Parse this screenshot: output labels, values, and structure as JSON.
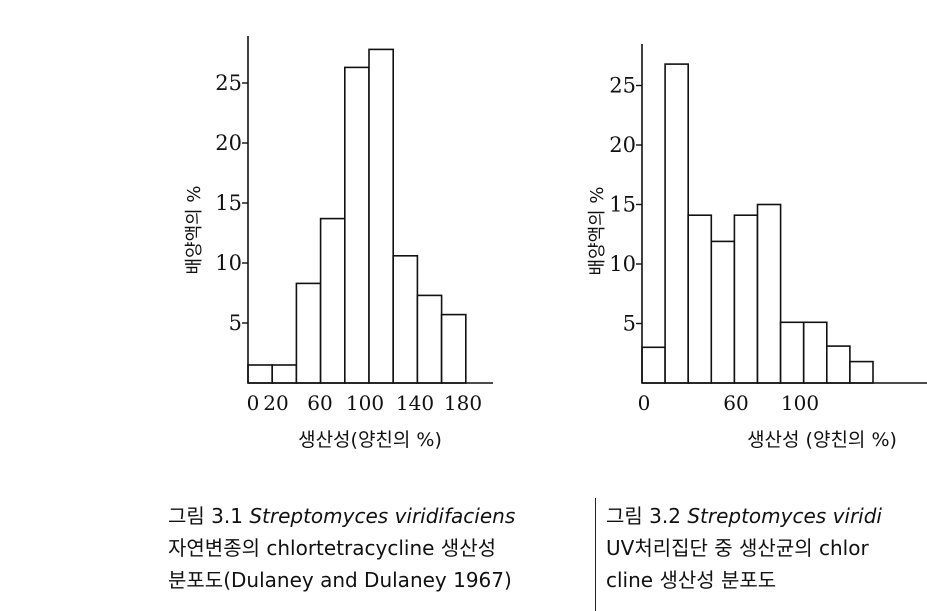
{
  "chart_data": [
    {
      "type": "bar",
      "xlabel": "생산성(양친의 %)",
      "ylabel": "배양액의 %",
      "x_tick_labels": [
        "0",
        "20",
        "60",
        "100",
        "140",
        "180"
      ],
      "y_tick_labels": [
        "5",
        "10",
        "15",
        "20",
        "25"
      ],
      "ylim": [
        0,
        29
      ],
      "xlim": [
        0,
        200
      ],
      "bin_width": 20,
      "bins": [
        {
          "start": 0,
          "end": 20,
          "value": 1.5
        },
        {
          "start": 20,
          "end": 40,
          "value": 1.5
        },
        {
          "start": 40,
          "end": 60,
          "value": 8.3
        },
        {
          "start": 60,
          "end": 80,
          "value": 13.7
        },
        {
          "start": 80,
          "end": 100,
          "value": 26.3
        },
        {
          "start": 100,
          "end": 120,
          "value": 27.8
        },
        {
          "start": 120,
          "end": 140,
          "value": 10.6
        },
        {
          "start": 140,
          "end": 160,
          "value": 7.3
        },
        {
          "start": 160,
          "end": 180,
          "value": 5.7
        }
      ],
      "grid": false,
      "legend": "none"
    },
    {
      "type": "bar",
      "xlabel": "생산성 (양친의 %)",
      "ylabel": "배양액의 %",
      "x_tick_labels": [
        "0",
        "60",
        "100"
      ],
      "y_tick_labels": [
        "5",
        "10",
        "15",
        "20",
        "25"
      ],
      "ylim": [
        0,
        29
      ],
      "bin_width": 10,
      "bins": [
        {
          "start": 0,
          "end": 10,
          "value": 3
        },
        {
          "start": 10,
          "end": 20,
          "value": 26.8
        },
        {
          "start": 20,
          "end": 30,
          "value": 14.1
        },
        {
          "start": 30,
          "end": 40,
          "value": 11.9
        },
        {
          "start": 40,
          "end": 50,
          "value": 14.1
        },
        {
          "start": 50,
          "end": 60,
          "value": 15
        },
        {
          "start": 60,
          "end": 70,
          "value": 5.1
        },
        {
          "start": 70,
          "end": 80,
          "value": 5.1
        },
        {
          "start": 80,
          "end": 90,
          "value": 3.1
        },
        {
          "start": 90,
          "end": 100,
          "value": 1.8
        }
      ],
      "grid": false,
      "legend": "none"
    }
  ],
  "captions": [
    {
      "figure_label": "그림 3.1",
      "organism": "Streptomyces viridifaciens",
      "line2": "자연변종의 chlortetracycline 생산성",
      "line3": "분포도(Dulaney and Dulaney 1967)"
    },
    {
      "figure_label": "그림 3.2",
      "organism": "Streptomyces viridi",
      "line2": "UV처리집단 중 생산균의 chlor",
      "line3": "cline 생산성 분포도"
    }
  ]
}
